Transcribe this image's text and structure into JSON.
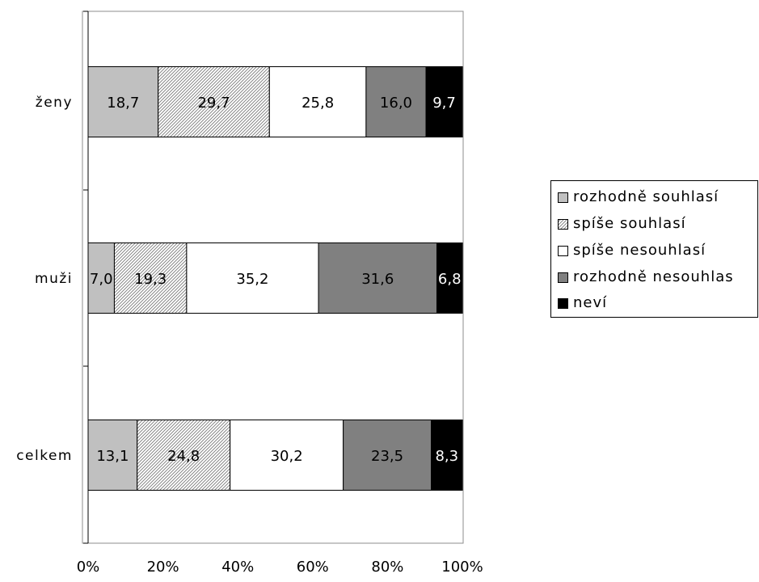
{
  "chart_data": {
    "type": "bar",
    "orientation": "horizontal",
    "stacked": "percent",
    "categories": [
      "ženy",
      "muži",
      "celkem"
    ],
    "series": [
      {
        "name": "rozhodně souhlasí",
        "values": [
          18.7,
          7.0,
          13.1
        ],
        "labels": [
          "18,7",
          "7,0",
          "13,1"
        ],
        "fill": "#c0c0c0",
        "pattern": "solid",
        "label_color": "#000000"
      },
      {
        "name": "spíše souhlasí",
        "values": [
          29.7,
          19.3,
          24.8
        ],
        "labels": [
          "29,7",
          "19,3",
          "24,8"
        ],
        "fill": "#ffffff",
        "pattern": "diagonal-hatch",
        "label_color": "#000000"
      },
      {
        "name": "spíše nesouhlasí",
        "values": [
          25.8,
          35.2,
          30.2
        ],
        "labels": [
          "25,8",
          "35,2",
          "30,2"
        ],
        "fill": "#ffffff",
        "pattern": "solid",
        "label_color": "#000000"
      },
      {
        "name": "rozhodně nesouhlas",
        "values": [
          16.0,
          31.6,
          23.5
        ],
        "labels": [
          "16,0",
          "31,6",
          "23,5"
        ],
        "fill": "#808080",
        "pattern": "solid",
        "label_color": "#000000"
      },
      {
        "name": "neví",
        "values": [
          9.7,
          6.8,
          8.3
        ],
        "labels": [
          "9,7",
          "6,8",
          "8,3"
        ],
        "fill": "#000000",
        "pattern": "solid",
        "label_color": "#ffffff"
      }
    ],
    "x_ticks": [
      "0%",
      "20%",
      "40%",
      "60%",
      "80%",
      "100%"
    ],
    "xlim": [
      0,
      100
    ],
    "grid": false,
    "legend_position": "right"
  }
}
